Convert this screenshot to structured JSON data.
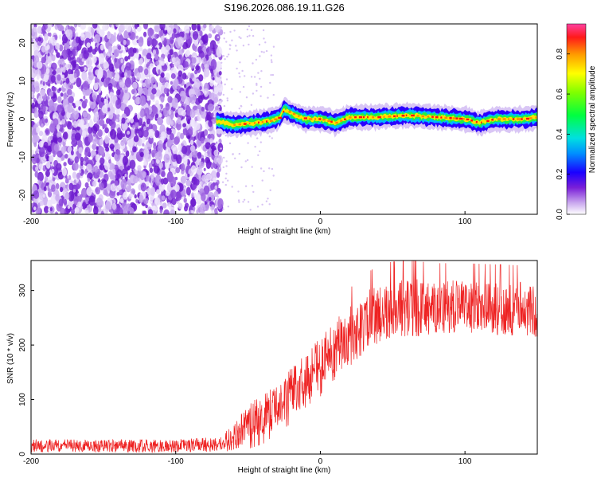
{
  "title": "S196.2026.086.19.11.G26",
  "chart_data": [
    {
      "type": "heatmap",
      "name": "spectrogram",
      "xlabel": "Height of straight line (km)",
      "ylabel": "Frequency (Hz)",
      "xlim": [
        -200,
        150
      ],
      "ylim": [
        -25,
        25
      ],
      "x_ticks": [
        "-200",
        "-100",
        "0",
        "100"
      ],
      "x_tick_values": [
        -200,
        -100,
        0,
        100
      ],
      "y_ticks": [
        "20",
        "10",
        "0",
        "-10",
        "-20"
      ],
      "y_tick_values": [
        20,
        10,
        0,
        -10,
        -20
      ],
      "noise_region_x": [
        -200,
        -72
      ],
      "signal_start_x": -72,
      "ridge": [
        {
          "x": -72,
          "y": -0.5
        },
        {
          "x": -60,
          "y": -1.5
        },
        {
          "x": -45,
          "y": -1.0
        },
        {
          "x": -35,
          "y": -0.5
        },
        {
          "x": -28,
          "y": 0.5
        },
        {
          "x": -25,
          "y": 2.5
        },
        {
          "x": -20,
          "y": 1.5
        },
        {
          "x": -10,
          "y": 0.0
        },
        {
          "x": 0,
          "y": 0.0
        },
        {
          "x": 10,
          "y": -1.0
        },
        {
          "x": 20,
          "y": 0.5
        },
        {
          "x": 40,
          "y": 0.5
        },
        {
          "x": 60,
          "y": 1.0
        },
        {
          "x": 80,
          "y": 0.5
        },
        {
          "x": 100,
          "y": 0.0
        },
        {
          "x": 110,
          "y": -1.0
        },
        {
          "x": 120,
          "y": 0.0
        },
        {
          "x": 140,
          "y": 0.0
        },
        {
          "x": 150,
          "y": 0.5
        }
      ],
      "colorbar": {
        "label": "Normalized spectral amplitude",
        "range": [
          0.0,
          0.95
        ],
        "ticks": [
          "0.0",
          "0.2",
          "0.4",
          "0.6",
          "0.8"
        ],
        "tick_values": [
          0.0,
          0.2,
          0.4,
          0.6,
          0.8
        ]
      }
    },
    {
      "type": "line",
      "name": "snr",
      "xlabel": "Height of straight line (km)",
      "ylabel": "SNR (10 * v/v)",
      "xlim": [
        -200,
        150
      ],
      "ylim": [
        0,
        355
      ],
      "x_ticks": [
        "-200",
        "-100",
        "0",
        "100"
      ],
      "x_tick_values": [
        -200,
        -100,
        0,
        100
      ],
      "y_ticks": [
        "0",
        "100",
        "200",
        "300"
      ],
      "y_tick_values": [
        0,
        100,
        200,
        300
      ],
      "series": [
        {
          "name": "SNR",
          "color": "#ee2222",
          "envelope_x": [
            -200,
            -100,
            -70,
            -60,
            -50,
            -40,
            -30,
            -20,
            -10,
            0,
            10,
            20,
            30,
            40,
            50,
            60,
            80,
            100,
            120,
            150
          ],
          "envelope_mean": [
            15,
            15,
            18,
            30,
            55,
            70,
            90,
            115,
            135,
            160,
            190,
            215,
            240,
            258,
            265,
            268,
            270,
            270,
            268,
            265
          ],
          "envelope_amp": [
            12,
            12,
            14,
            25,
            35,
            40,
            40,
            45,
            50,
            55,
            55,
            55,
            55,
            55,
            55,
            55,
            50,
            50,
            50,
            50
          ]
        }
      ]
    }
  ]
}
